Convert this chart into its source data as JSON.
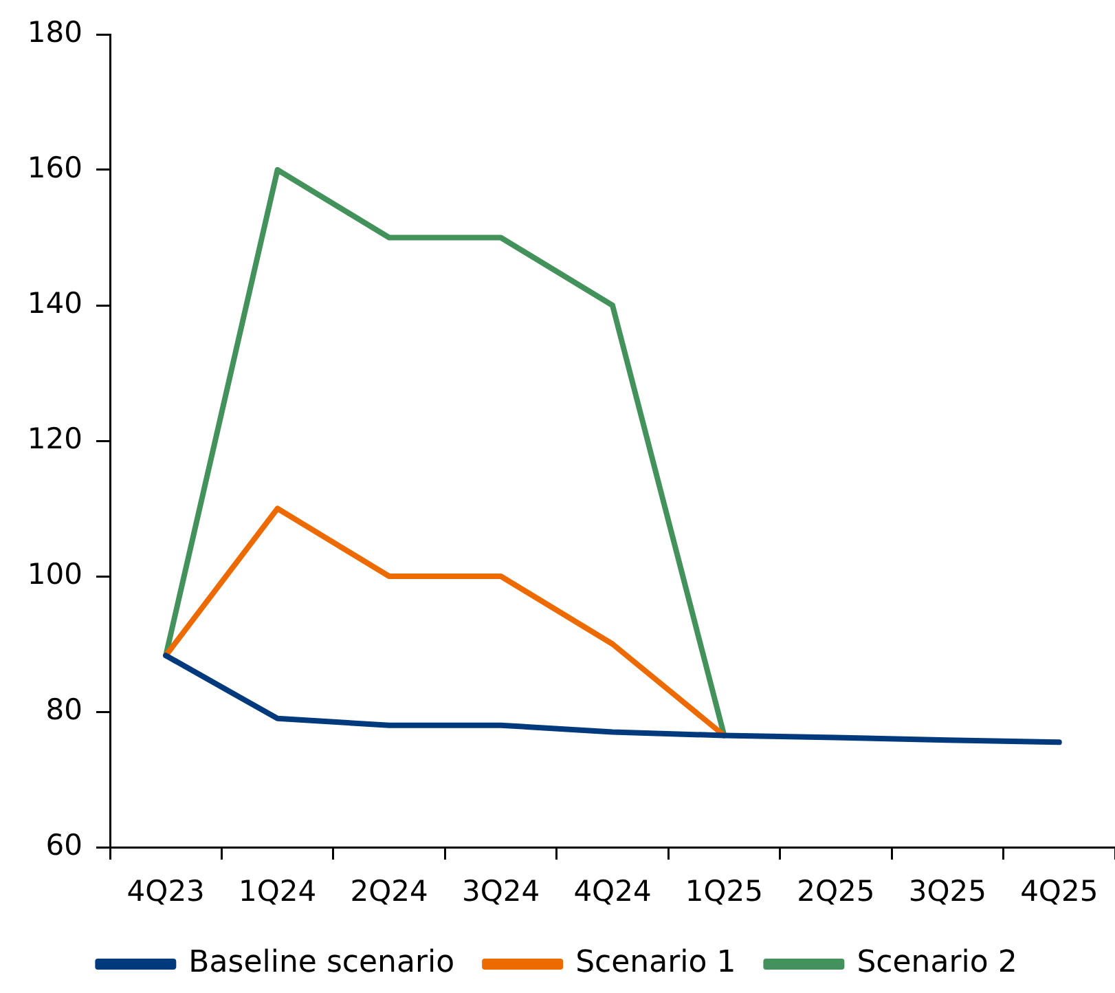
{
  "chart_data": {
    "type": "line",
    "categories": [
      "4Q23",
      "1Q24",
      "2Q24",
      "3Q24",
      "4Q24",
      "1Q25",
      "2Q25",
      "3Q25",
      "4Q25"
    ],
    "series": [
      {
        "name": "Baseline scenario",
        "color": "#003a7d",
        "values": [
          88.3,
          79,
          78,
          78,
          77,
          76.5,
          76.2,
          75.8,
          75.5
        ]
      },
      {
        "name": "Scenario 1",
        "color": "#ed6a00",
        "values": [
          88.3,
          110,
          100,
          100,
          90,
          76.5,
          null,
          null,
          null
        ]
      },
      {
        "name": "Scenario 2",
        "color": "#44925b",
        "values": [
          88.3,
          160,
          150,
          150,
          140,
          76.5,
          null,
          null,
          null
        ]
      }
    ],
    "ylim": [
      60,
      180
    ],
    "yticks": [
      60,
      80,
      100,
      120,
      140,
      160,
      180
    ],
    "legend": "bottom",
    "marker": "none",
    "line_style": "solid"
  }
}
